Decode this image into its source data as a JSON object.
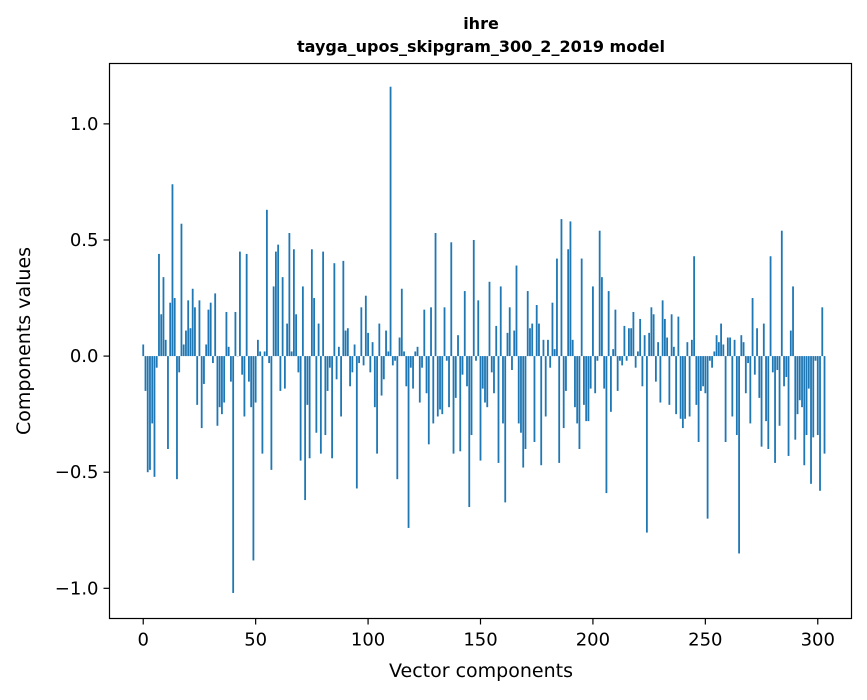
{
  "chart_data": {
    "type": "bar",
    "title_line1": "ihre",
    "title_line2": "tayga_upos_skipgram_300_2_2019 model",
    "xlabel": "Vector components",
    "ylabel": "Components values",
    "xlim": [
      -15,
      315
    ],
    "ylim": [
      -1.13,
      1.26
    ],
    "xticks": [
      0,
      50,
      100,
      150,
      200,
      250,
      300
    ],
    "xtick_labels": [
      "0",
      "50",
      "100",
      "150",
      "200",
      "250",
      "300"
    ],
    "yticks": [
      -1.0,
      -0.5,
      0.0,
      0.5,
      1.0
    ],
    "ytick_labels": [
      "−1.0",
      "−0.5",
      "0.0",
      "0.5",
      "1.0"
    ],
    "bar_color": "#1f77b4",
    "values": [
      0.05,
      -0.15,
      -0.5,
      -0.49,
      -0.29,
      -0.52,
      -0.05,
      0.44,
      0.18,
      0.34,
      0.07,
      -0.4,
      0.23,
      0.74,
      0.25,
      -0.53,
      -0.07,
      0.57,
      0.05,
      0.11,
      0.24,
      0.12,
      0.29,
      0.21,
      -0.21,
      0.24,
      -0.31,
      -0.12,
      0.05,
      0.2,
      0.23,
      -0.03,
      0.27,
      -0.3,
      -0.22,
      -0.25,
      -0.2,
      0.19,
      0.04,
      -0.11,
      -1.02,
      0.19,
      0.0,
      0.45,
      -0.08,
      -0.26,
      0.44,
      -0.11,
      -0.22,
      -0.88,
      -0.2,
      0.07,
      0.02,
      -0.42,
      0.02,
      0.63,
      -0.03,
      -0.49,
      0.3,
      0.45,
      0.48,
      -0.15,
      0.34,
      -0.14,
      0.14,
      0.53,
      0.02,
      0.46,
      0.18,
      -0.07,
      -0.45,
      0.3,
      -0.62,
      -0.21,
      -0.44,
      0.46,
      0.25,
      -0.33,
      0.14,
      -0.42,
      0.45,
      -0.34,
      -0.15,
      -0.05,
      -0.44,
      0.4,
      -0.1,
      0.04,
      -0.26,
      0.41,
      0.11,
      0.12,
      -0.13,
      -0.07,
      0.05,
      -0.57,
      -0.03,
      0.21,
      -0.04,
      0.26,
      0.1,
      -0.07,
      0.06,
      -0.22,
      -0.42,
      0.14,
      -0.17,
      -0.1,
      0.11,
      0.02,
      1.16,
      -0.04,
      -0.02,
      -0.53,
      0.08,
      0.29,
      0.02,
      -0.13,
      -0.74,
      -0.05,
      -0.14,
      0.02,
      0.04,
      -0.2,
      -0.05,
      0.2,
      -0.16,
      -0.38,
      0.21,
      -0.29,
      0.53,
      -0.26,
      -0.23,
      -0.25,
      0.21,
      -0.02,
      -0.22,
      0.49,
      -0.42,
      -0.18,
      0.09,
      -0.41,
      -0.08,
      0.28,
      -0.13,
      -0.65,
      -0.34,
      0.5,
      -0.02,
      0.24,
      -0.45,
      -0.14,
      -0.2,
      -0.22,
      0.32,
      -0.07,
      -0.16,
      0.13,
      -0.46,
      0.3,
      -0.29,
      -0.63,
      0.1,
      0.21,
      -0.06,
      0.11,
      0.39,
      -0.29,
      -0.33,
      -0.48,
      -0.4,
      0.28,
      0.12,
      0.14,
      -0.37,
      0.22,
      0.14,
      -0.47,
      0.07,
      -0.26,
      0.07,
      -0.05,
      0.23,
      0.03,
      0.42,
      -0.46,
      0.59,
      -0.31,
      -0.15,
      0.46,
      0.58,
      0.07,
      -0.22,
      -0.29,
      -0.4,
      0.42,
      -0.21,
      -0.28,
      -0.28,
      -0.14,
      0.3,
      -0.16,
      -0.02,
      0.54,
      0.34,
      -0.14,
      -0.59,
      0.28,
      -0.24,
      0.03,
      0.2,
      -0.15,
      -0.02,
      -0.04,
      0.13,
      -0.02,
      0.12,
      0.12,
      0.19,
      -0.05,
      0.02,
      0.16,
      -0.13,
      0.09,
      -0.76,
      0.1,
      0.21,
      0.18,
      -0.11,
      0.06,
      -0.2,
      0.24,
      0.16,
      0.08,
      -0.21,
      0.18,
      0.04,
      -0.25,
      0.17,
      -0.27,
      -0.31,
      -0.27,
      0.06,
      -0.26,
      0.07,
      0.43,
      -0.21,
      -0.37,
      -0.15,
      -0.13,
      -0.16,
      -0.7,
      -0.02,
      -0.05,
      0.02,
      0.09,
      0.06,
      0.14,
      0.05,
      -0.37,
      0.08,
      0.08,
      -0.26,
      0.07,
      -0.34,
      -0.85,
      0.09,
      0.06,
      -0.16,
      -0.03,
      -0.29,
      0.25,
      -0.08,
      0.12,
      -0.18,
      -0.39,
      0.14,
      -0.28,
      -0.4,
      0.43,
      -0.07,
      -0.46,
      -0.06,
      -0.3,
      0.54,
      -0.13,
      -0.09,
      -0.43,
      0.11,
      0.3,
      -0.36,
      -0.25,
      -0.19,
      -0.22,
      -0.47,
      -0.34,
      -0.14,
      -0.55,
      -0.35,
      -0.02,
      -0.34,
      -0.58,
      0.21,
      -0.42
    ]
  }
}
